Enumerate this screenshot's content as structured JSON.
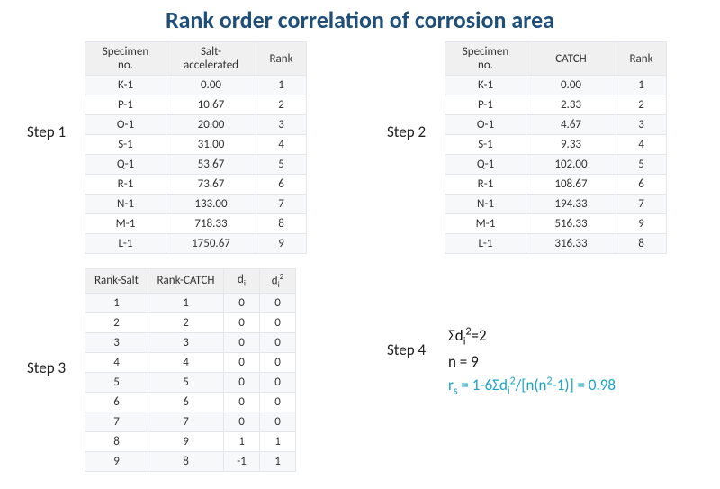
{
  "title": "Rank order correlation of corrosion area",
  "colors": {
    "title": "#1f4e79",
    "accent": "#1aa3c9",
    "header_bg": "#f0f0f0",
    "row_alt": "#f7f8fa",
    "border": "#e3e6ea",
    "text": "#333333"
  },
  "steps": {
    "step1": {
      "label": "Step 1",
      "columns": [
        "Specimen no.",
        "Salt-accelerated",
        "Rank"
      ],
      "rows": [
        [
          "K-1",
          "0.00",
          "1"
        ],
        [
          "P-1",
          "10.67",
          "2"
        ],
        [
          "O-1",
          "20.00",
          "3"
        ],
        [
          "S-1",
          "31.00",
          "4"
        ],
        [
          "Q-1",
          "53.67",
          "5"
        ],
        [
          "R-1",
          "73.67",
          "6"
        ],
        [
          "N-1",
          "133.00",
          "7"
        ],
        [
          "M-1",
          "718.33",
          "8"
        ],
        [
          "L-1",
          "1750.67",
          "9"
        ]
      ]
    },
    "step2": {
      "label": "Step 2",
      "columns": [
        "Specimen no.",
        "CATCH",
        "Rank"
      ],
      "rows": [
        [
          "K-1",
          "0.00",
          "1"
        ],
        [
          "P-1",
          "2.33",
          "2"
        ],
        [
          "O-1",
          "4.67",
          "3"
        ],
        [
          "S-1",
          "9.33",
          "4"
        ],
        [
          "Q-1",
          "102.00",
          "5"
        ],
        [
          "R-1",
          "108.67",
          "6"
        ],
        [
          "N-1",
          "194.33",
          "7"
        ],
        [
          "M-1",
          "516.33",
          "9"
        ],
        [
          "L-1",
          "316.33",
          "8"
        ]
      ]
    },
    "step3": {
      "label": "Step 3",
      "columns_plain": [
        "Rank-Salt",
        "Rank-CATCH"
      ],
      "col_di": "d",
      "col_di_sub": "i",
      "col_di2_sup": "2",
      "rows": [
        [
          "1",
          "1",
          "0",
          "0"
        ],
        [
          "2",
          "2",
          "0",
          "0"
        ],
        [
          "3",
          "3",
          "0",
          "0"
        ],
        [
          "4",
          "4",
          "0",
          "0"
        ],
        [
          "5",
          "5",
          "0",
          "0"
        ],
        [
          "6",
          "6",
          "0",
          "0"
        ],
        [
          "7",
          "7",
          "0",
          "0"
        ],
        [
          "8",
          "9",
          "1",
          "1"
        ],
        [
          "9",
          "8",
          "-1",
          "1"
        ]
      ]
    },
    "step4": {
      "label": "Step 4",
      "line1_pre": "Σd",
      "line1_sub": "i",
      "line1_sup": "2",
      "line1_post": "=2",
      "line2": "n = 9",
      "line3_pre": "r",
      "line3_sub1": "s",
      "line3_mid1": " = 1-6Σd",
      "line3_sub2": "i",
      "line3_sup2": "2",
      "line3_mid2": "/[n(n",
      "line3_sup3": "2",
      "line3_post": "-1)] = 0.98"
    }
  }
}
